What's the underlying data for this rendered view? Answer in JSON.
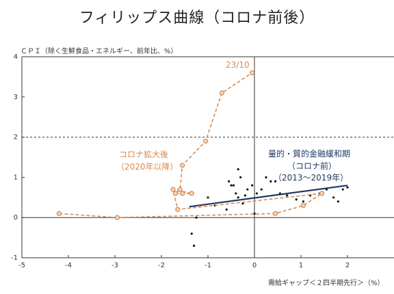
{
  "title": "フィリップス曲線（コロナ前後）",
  "chart_data": {
    "type": "scatter",
    "ylabel": "ＣＰＩ（除く生鮮食品・エネルギー、前年比、%）",
    "xlabel": "需給ギャップ＜２四半期先行＞（%）",
    "xlim": [
      -5,
      3
    ],
    "ylim": [
      -1,
      4
    ],
    "xticks": [
      -5,
      -4,
      -3,
      -2,
      -1,
      0,
      1,
      2
    ],
    "yticks": [
      -1,
      0,
      1,
      2,
      3,
      4
    ],
    "reference_line_y": 2,
    "colors": {
      "pre_covid": "#1f3864",
      "post_covid": "#d98a4f",
      "post_covid_fill": "#f3d9c4",
      "axis": "#333333"
    },
    "annotations": {
      "latest": "23/10",
      "post_covid_label": [
        "コロナ拡大後",
        "（2020年以降）"
      ],
      "pre_covid_label": [
        "量的・質的金融緩和期",
        "（コロナ前）",
        "（2013〜2019年）"
      ]
    },
    "series": [
      {
        "name": "量的・質的金融緩和期（コロナ前）",
        "kind": "points",
        "x": [
          -1.35,
          -1.3,
          -1.25,
          -1.0,
          -0.85,
          -0.6,
          -0.55,
          -0.5,
          -0.45,
          -0.4,
          -0.35,
          -0.35,
          -0.3,
          -0.25,
          -0.2,
          -0.15,
          -0.05,
          0.0,
          0.05,
          0.15,
          0.25,
          0.35,
          0.45,
          0.55,
          0.7,
          0.9,
          1.05,
          1.2,
          1.4,
          1.55,
          1.7,
          1.8,
          1.9,
          2.0
        ],
        "y": [
          -0.4,
          -0.7,
          0.0,
          0.5,
          0.3,
          0.2,
          0.9,
          0.8,
          0.8,
          0.6,
          1.2,
          0.5,
          1.0,
          0.35,
          0.55,
          0.7,
          0.8,
          0.1,
          0.6,
          0.7,
          1.0,
          0.9,
          0.9,
          0.6,
          0.55,
          0.45,
          0.4,
          0.55,
          0.6,
          0.7,
          0.5,
          0.4,
          0.7,
          0.75
        ]
      },
      {
        "name": "回帰線",
        "kind": "line",
        "x": [
          -1.4,
          2.0
        ],
        "y": [
          0.27,
          0.8
        ]
      },
      {
        "name": "コロナ拡大後（2020年以降）",
        "kind": "path",
        "x": [
          -4.2,
          -2.95,
          0.45,
          1.05,
          1.45,
          -1.65,
          -1.75,
          -1.35,
          -1.55,
          -1.7,
          -1.6,
          -1.55,
          -1.05,
          -0.7,
          -0.05
        ],
        "y": [
          0.1,
          0.0,
          0.1,
          0.3,
          0.6,
          0.2,
          0.7,
          0.6,
          0.6,
          0.6,
          0.7,
          1.3,
          1.9,
          3.1,
          3.6
        ]
      }
    ]
  }
}
